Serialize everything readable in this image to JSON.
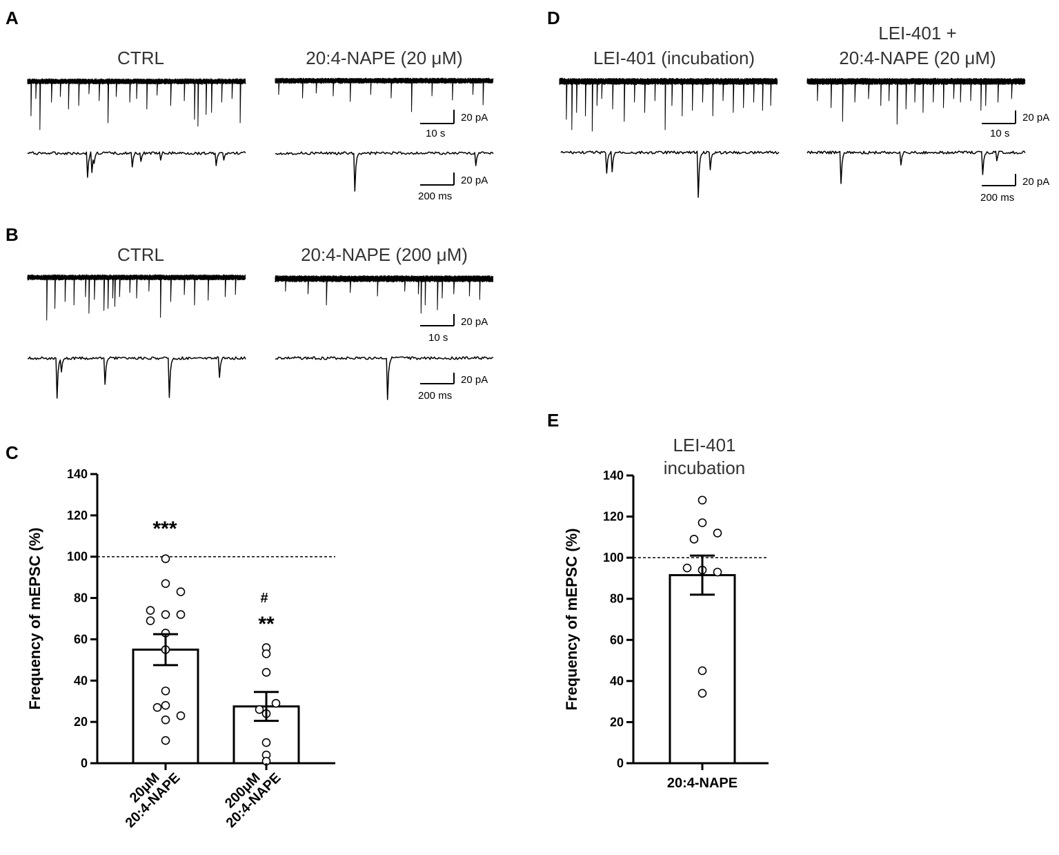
{
  "panels": {
    "A": {
      "letter": "A",
      "left_title": "CTRL",
      "right_title": "20:4-NAPE (20 μM)",
      "scale_long": {
        "amp": "20 pA",
        "time": "10 s"
      },
      "scale_short": {
        "amp": "20 pA",
        "time": "200 ms"
      }
    },
    "B": {
      "letter": "B",
      "left_title": "CTRL",
      "right_title": "20:4-NAPE (200 μM)",
      "scale_long": {
        "amp": "20 pA",
        "time": "10 s"
      },
      "scale_short": {
        "amp": "20 pA",
        "time": "200 ms"
      }
    },
    "D": {
      "letter": "D",
      "left_title": "LEI-401 (incubation)",
      "right_title_line1": "LEI-401 +",
      "right_title_line2": "20:4-NAPE (20 μM)",
      "scale_long": {
        "amp": "20 pA",
        "time": "10 s"
      },
      "scale_short": {
        "amp": "20 pA",
        "time": "200 ms"
      }
    },
    "C": {
      "letter": "C",
      "sig_20": "***",
      "sig_200_hash": "#",
      "sig_200": "**"
    },
    "E": {
      "letter": "E",
      "title_line1": "LEI-401",
      "title_line2": "incubation"
    }
  },
  "chart_data": [
    {
      "panel": "C",
      "type": "bar",
      "ylabel": "Frequency of mEPSC (%)",
      "ylim": [
        0,
        140
      ],
      "yticks": [
        0,
        20,
        40,
        60,
        80,
        100,
        120,
        140
      ],
      "reference_line": 100,
      "categories": [
        {
          "line1": "20μM",
          "line2": "20:4-NAPE"
        },
        {
          "line1": "200μM",
          "line2": "20:4-NAPE"
        }
      ],
      "values": [
        55,
        27.5
      ],
      "sem": [
        7.5,
        7
      ],
      "points": [
        [
          99,
          87,
          83,
          74,
          72,
          72,
          69,
          63,
          55,
          35,
          28,
          27,
          23,
          21,
          11
        ],
        [
          56,
          53,
          44,
          29,
          26,
          24,
          10,
          4,
          1
        ]
      ],
      "annotations": [
        "***",
        "#",
        "**"
      ]
    },
    {
      "panel": "E",
      "type": "bar",
      "title": "LEI-401 incubation",
      "ylabel": "Frequency of mEPSC (%)",
      "ylim": [
        0,
        140
      ],
      "yticks": [
        0,
        20,
        40,
        60,
        80,
        100,
        120,
        140
      ],
      "reference_line": 100,
      "categories": [
        "20:4-NAPE"
      ],
      "values": [
        91.5
      ],
      "sem": [
        9.5
      ],
      "points": [
        [
          128,
          117,
          112,
          109,
          95,
          94,
          93,
          45,
          34
        ]
      ]
    }
  ],
  "colors": {
    "ink": "#000000",
    "title_text": "#333333",
    "background": "#ffffff",
    "marker_fill": "#ffffff"
  }
}
